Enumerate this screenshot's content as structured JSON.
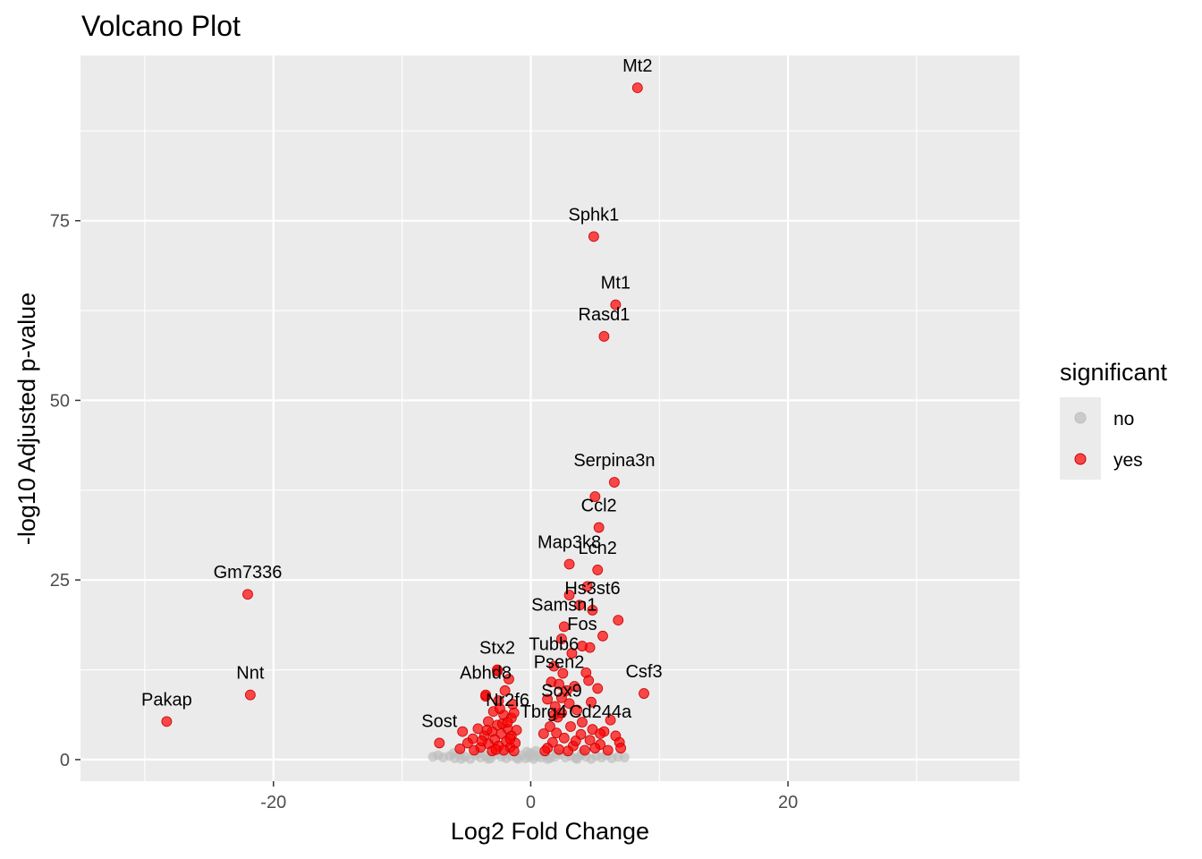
{
  "chart_data": {
    "type": "scatter",
    "title": "Volcano Plot",
    "xlabel": "Log2 Fold Change",
    "ylabel": "-log10 Adjusted p-value",
    "xlim": [
      -35,
      38
    ],
    "ylim": [
      -3,
      98
    ],
    "x_ticks": [
      -20,
      0,
      20
    ],
    "x_tick_labels": [
      "-20",
      "0",
      "20"
    ],
    "y_ticks": [
      0,
      25,
      50,
      75
    ],
    "y_tick_labels": [
      "0",
      "25",
      "50",
      "75"
    ],
    "grid": true,
    "legend": {
      "title": "significant",
      "position": "right",
      "entries": [
        {
          "label": "no",
          "color": "#bebebe"
        },
        {
          "label": "yes",
          "color": "#ff0000"
        }
      ]
    },
    "colors": {
      "no": "#bebebe",
      "yes": "#ff0000",
      "panel": "#ebebeb",
      "grid": "#ffffff"
    },
    "labeled_points": [
      {
        "gene": "Mt2",
        "x": 8.3,
        "y": 93.5
      },
      {
        "gene": "Sphk1",
        "x": 4.9,
        "y": 72.8
      },
      {
        "gene": "Mt1",
        "x": 6.6,
        "y": 63.3
      },
      {
        "gene": "Rasd1",
        "x": 5.7,
        "y": 58.9
      },
      {
        "gene": "Serpina3n",
        "x": 6.5,
        "y": 38.6
      },
      {
        "gene": "Ccl2",
        "x": 5.3,
        "y": 32.3
      },
      {
        "gene": "Lcn2",
        "x": 5.2,
        "y": 26.4
      },
      {
        "gene": "Map3k8",
        "x": 3.0,
        "y": 27.2
      },
      {
        "gene": "Hs3st6",
        "x": 4.8,
        "y": 20.8
      },
      {
        "gene": "Samsn1",
        "x": 2.6,
        "y": 18.5
      },
      {
        "gene": "Fos",
        "x": 4.0,
        "y": 15.8
      },
      {
        "gene": "Gm7336",
        "x": -22.0,
        "y": 23.0
      },
      {
        "gene": "Nnt",
        "x": -21.8,
        "y": 9.0
      },
      {
        "gene": "Pakap",
        "x": -28.3,
        "y": 5.3
      },
      {
        "gene": "Stx2",
        "x": -2.6,
        "y": 12.5
      },
      {
        "gene": "Tubb6",
        "x": 1.8,
        "y": 13.0
      },
      {
        "gene": "Psen2",
        "x": 2.2,
        "y": 10.5
      },
      {
        "gene": "Csf3",
        "x": 8.8,
        "y": 9.2
      },
      {
        "gene": "Abhd8",
        "x": -3.5,
        "y": 9.0
      },
      {
        "gene": "Sox9",
        "x": 2.4,
        "y": 6.5
      },
      {
        "gene": "Nr2f6",
        "x": -1.8,
        "y": 5.2
      },
      {
        "gene": "Cd244a",
        "x": 5.4,
        "y": 3.6
      },
      {
        "gene": "Sost",
        "x": -7.1,
        "y": 2.3
      },
      {
        "gene": "Tbrg4",
        "x": 1.0,
        "y": 3.6
      }
    ],
    "significant_points": [
      {
        "x": 6.8,
        "y": 19.4
      },
      {
        "x": 5.6,
        "y": 17.2
      },
      {
        "x": 4.6,
        "y": 15.6
      },
      {
        "x": 3.2,
        "y": 14.8
      },
      {
        "x": 2.4,
        "y": 16.8
      },
      {
        "x": 3.8,
        "y": 21.5
      },
      {
        "x": 4.4,
        "y": 24.1
      },
      {
        "x": 3.0,
        "y": 22.9
      },
      {
        "x": 5.0,
        "y": 36.6
      },
      {
        "x": 4.3,
        "y": 12.1
      },
      {
        "x": 5.2,
        "y": 9.9
      },
      {
        "x": 4.7,
        "y": 8.0
      },
      {
        "x": 6.2,
        "y": 5.5
      },
      {
        "x": 6.6,
        "y": 3.3
      },
      {
        "x": 6.9,
        "y": 2.4
      },
      {
        "x": 7.0,
        "y": 1.6
      },
      {
        "x": 3.6,
        "y": 6.9
      },
      {
        "x": 2.8,
        "y": 9.6
      },
      {
        "x": 1.6,
        "y": 10.8
      },
      {
        "x": 1.3,
        "y": 8.4
      },
      {
        "x": 1.9,
        "y": 7.4
      },
      {
        "x": 2.1,
        "y": 5.9
      },
      {
        "x": 3.1,
        "y": 4.6
      },
      {
        "x": 3.9,
        "y": 3.5
      },
      {
        "x": 4.6,
        "y": 2.7
      },
      {
        "x": 5.4,
        "y": 2.1
      },
      {
        "x": 2.6,
        "y": 3.0
      },
      {
        "x": 1.7,
        "y": 2.4
      },
      {
        "x": 1.3,
        "y": 1.6
      },
      {
        "x": 2.2,
        "y": 1.4
      },
      {
        "x": 3.3,
        "y": 1.9
      },
      {
        "x": 4.2,
        "y": 1.3
      },
      {
        "x": 5.0,
        "y": 1.6
      },
      {
        "x": 6.0,
        "y": 1.3
      },
      {
        "x": 1.5,
        "y": 4.6
      },
      {
        "x": 2.0,
        "y": 3.7
      },
      {
        "x": 3.5,
        "y": 2.6
      },
      {
        "x": 2.9,
        "y": 1.2
      },
      {
        "x": 1.1,
        "y": 1.2
      },
      {
        "x": 4.0,
        "y": 5.2
      },
      {
        "x": 2.5,
        "y": 12.0
      },
      {
        "x": 3.4,
        "y": 10.2
      },
      {
        "x": 1.8,
        "y": 6.2
      },
      {
        "x": 2.4,
        "y": 8.6
      },
      {
        "x": 5.7,
        "y": 3.9
      },
      {
        "x": 4.8,
        "y": 4.2
      },
      {
        "x": 3.0,
        "y": 7.8
      },
      {
        "x": 4.5,
        "y": 11.0
      },
      {
        "x": -2.6,
        "y": 12.3
      },
      {
        "x": -1.7,
        "y": 11.2
      },
      {
        "x": -3.5,
        "y": 8.8
      },
      {
        "x": -2.5,
        "y": 8.2
      },
      {
        "x": -1.4,
        "y": 7.7
      },
      {
        "x": -2.9,
        "y": 6.7
      },
      {
        "x": -2.1,
        "y": 6.2
      },
      {
        "x": -1.5,
        "y": 5.8
      },
      {
        "x": -3.3,
        "y": 5.3
      },
      {
        "x": -2.6,
        "y": 4.8
      },
      {
        "x": -1.8,
        "y": 4.3
      },
      {
        "x": -1.1,
        "y": 4.1
      },
      {
        "x": -4.1,
        "y": 4.3
      },
      {
        "x": -3.0,
        "y": 3.9
      },
      {
        "x": -2.3,
        "y": 3.6
      },
      {
        "x": -1.5,
        "y": 3.3
      },
      {
        "x": -3.6,
        "y": 3.3
      },
      {
        "x": -4.5,
        "y": 2.9
      },
      {
        "x": -2.8,
        "y": 2.8
      },
      {
        "x": -1.9,
        "y": 2.5
      },
      {
        "x": -1.2,
        "y": 2.3
      },
      {
        "x": -3.3,
        "y": 2.2
      },
      {
        "x": -5.3,
        "y": 3.9
      },
      {
        "x": -4.9,
        "y": 2.3
      },
      {
        "x": -2.5,
        "y": 1.9
      },
      {
        "x": -1.6,
        "y": 1.7
      },
      {
        "x": -3.9,
        "y": 1.7
      },
      {
        "x": -4.4,
        "y": 1.3
      },
      {
        "x": -2.1,
        "y": 1.3
      },
      {
        "x": -1.3,
        "y": 1.2
      },
      {
        "x": -5.5,
        "y": 1.5
      },
      {
        "x": -3.0,
        "y": 1.2
      },
      {
        "x": -2.4,
        "y": 7.1
      },
      {
        "x": -2.0,
        "y": 9.6
      },
      {
        "x": -1.6,
        "y": 2.9
      },
      {
        "x": -2.7,
        "y": 1.4
      },
      {
        "x": -3.8,
        "y": 2.6
      },
      {
        "x": -2.2,
        "y": 5.0
      },
      {
        "x": -1.3,
        "y": 6.5
      },
      {
        "x": -3.4,
        "y": 4.1
      }
    ],
    "nonsignificant_points": [
      {
        "x": -7.6,
        "y": 0.4
      },
      {
        "x": -7.2,
        "y": 0.6
      },
      {
        "x": -6.8,
        "y": 0.3
      },
      {
        "x": -6.3,
        "y": 0.5
      },
      {
        "x": -5.9,
        "y": 0.2
      },
      {
        "x": -5.5,
        "y": 0.7
      },
      {
        "x": -5.1,
        "y": 0.4
      },
      {
        "x": -4.7,
        "y": 0.1
      },
      {
        "x": -4.3,
        "y": 0.6
      },
      {
        "x": -3.9,
        "y": 0.3
      },
      {
        "x": -3.5,
        "y": 0.5
      },
      {
        "x": -3.1,
        "y": 0.2
      },
      {
        "x": -2.7,
        "y": 0.7
      },
      {
        "x": -2.3,
        "y": 0.4
      },
      {
        "x": -1.9,
        "y": 0.2
      },
      {
        "x": -1.5,
        "y": 0.5
      },
      {
        "x": -1.1,
        "y": 0.3
      },
      {
        "x": -0.7,
        "y": 0.6
      },
      {
        "x": -0.4,
        "y": 0.2
      },
      {
        "x": -0.1,
        "y": 0.4
      },
      {
        "x": 0.2,
        "y": 0.1
      },
      {
        "x": 0.5,
        "y": 0.5
      },
      {
        "x": 0.8,
        "y": 0.3
      },
      {
        "x": 1.1,
        "y": 0.6
      },
      {
        "x": 1.5,
        "y": 0.2
      },
      {
        "x": 1.9,
        "y": 0.4
      },
      {
        "x": 2.3,
        "y": 0.7
      },
      {
        "x": 2.7,
        "y": 0.3
      },
      {
        "x": 3.1,
        "y": 0.5
      },
      {
        "x": 3.5,
        "y": 0.2
      },
      {
        "x": 3.9,
        "y": 0.6
      },
      {
        "x": 4.3,
        "y": 0.4
      },
      {
        "x": 4.7,
        "y": 0.1
      },
      {
        "x": 5.1,
        "y": 0.5
      },
      {
        "x": 5.5,
        "y": 0.3
      },
      {
        "x": 5.9,
        "y": 0.6
      },
      {
        "x": 6.3,
        "y": 0.2
      },
      {
        "x": 6.8,
        "y": 0.4
      },
      {
        "x": 7.3,
        "y": 0.3
      },
      {
        "x": -6.0,
        "y": 0.9
      },
      {
        "x": -4.0,
        "y": 0.9
      },
      {
        "x": -2.0,
        "y": 0.9
      },
      {
        "x": 0.0,
        "y": 0.9
      },
      {
        "x": 2.0,
        "y": 0.9
      },
      {
        "x": 4.0,
        "y": 0.9
      },
      {
        "x": -0.3,
        "y": 1.1
      },
      {
        "x": 0.4,
        "y": 1.2
      },
      {
        "x": -1.0,
        "y": 0.1
      },
      {
        "x": 1.3,
        "y": 0.1
      },
      {
        "x": -3.3,
        "y": 0.1
      },
      {
        "x": 3.6,
        "y": 0.1
      },
      {
        "x": -5.4,
        "y": 0.1
      }
    ]
  }
}
